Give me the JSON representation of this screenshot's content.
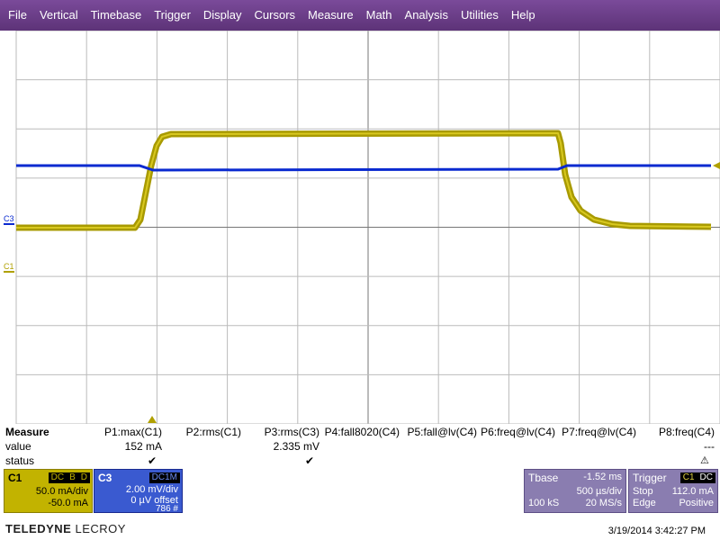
{
  "menu": [
    "File",
    "Vertical",
    "Timebase",
    "Trigger",
    "Display",
    "Cursors",
    "Measure",
    "Math",
    "Analysis",
    "Utilities",
    "Help"
  ],
  "channel_markers": {
    "c3": "C3",
    "c1": "C1"
  },
  "colors": {
    "menu_bg": "#6a3f86",
    "c1": "#b0a000",
    "c3": "#0a2ad0",
    "grid": "#999999",
    "panel_purple": "#8a7db0"
  },
  "measure": {
    "title": "Measure",
    "value_label": "value",
    "status_label": "status",
    "columns": [
      {
        "name": "P1:max(C1)",
        "value": "152 mA",
        "status": "check"
      },
      {
        "name": "P2:rms(C1)",
        "value": "",
        "status": ""
      },
      {
        "name": "P3:rms(C3)",
        "value": "2.335 mV",
        "status": "check"
      },
      {
        "name": "P4:fall8020(C4)",
        "value": "",
        "status": ""
      },
      {
        "name": "P5:fall@lv(C4)",
        "value": "",
        "status": ""
      },
      {
        "name": "P6:freq@lv(C4)",
        "value": "",
        "status": ""
      },
      {
        "name": "P7:freq@lv(C4)",
        "value": "",
        "status": ""
      },
      {
        "name": "P8:freq(C4)",
        "value": "---",
        "status": "warning"
      }
    ]
  },
  "c1": {
    "label": "C1",
    "tags": [
      "DC",
      "B",
      "D"
    ],
    "scale": "50.0 mA/div",
    "offset": "-50.0 mA"
  },
  "c3": {
    "label": "C3",
    "tags": "DC1M",
    "scale": "2.00 mV/div",
    "offset": "0 µV offset",
    "count": "786 #"
  },
  "timebase": {
    "label": "Tbase",
    "delay": "-1.52 ms",
    "scale": "500 µs/div",
    "samples": "100 kS",
    "rate": "20 MS/s"
  },
  "trigger": {
    "label": "Trigger",
    "tags": [
      "C1",
      "DC"
    ],
    "mode": "Stop",
    "level": "112.0 mA",
    "type": "Edge",
    "slope": "Positive"
  },
  "brand": {
    "name": "TELEDYNE",
    "suffix": "LECROY"
  },
  "timestamp": "3/19/2014 3:42:27 PM"
}
